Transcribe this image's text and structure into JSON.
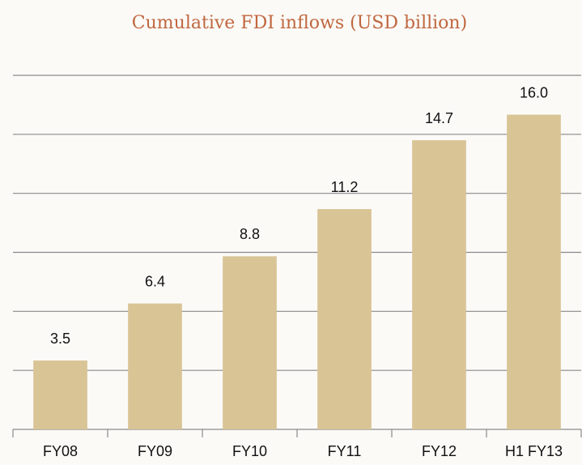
{
  "chart_data": {
    "type": "bar",
    "title": "Cumulative FDI inflows (USD billion)",
    "categories": [
      "FY08",
      "FY09",
      "FY10",
      "FY11",
      "FY12",
      "H1 FY13"
    ],
    "values": [
      3.5,
      6.4,
      8.8,
      11.2,
      14.7,
      16.0
    ],
    "value_labels": [
      "3.5",
      "6.4",
      "8.8",
      "11.2",
      "14.7",
      "16.0"
    ],
    "color": "#d9c496",
    "ylim": [
      0,
      18
    ],
    "yticks": [
      0,
      3,
      6,
      9,
      12,
      15,
      18
    ],
    "grid": true
  }
}
